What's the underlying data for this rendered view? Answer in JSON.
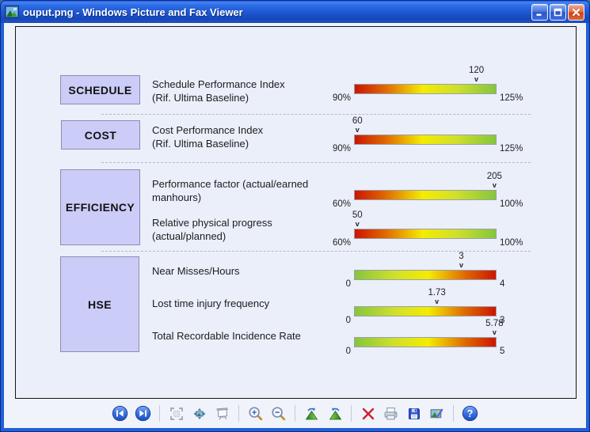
{
  "window": {
    "title": "ouput.png - Windows Picture and Fax Viewer",
    "controls": [
      "minimize",
      "maximize",
      "close"
    ]
  },
  "colors": {
    "titlebar_blue": "#1f5bd7",
    "frame_blue": "#2160d8",
    "client_bg": "#f0f3fa",
    "image_bg": "#ebeffa",
    "category_box_fill": "#ccccf8",
    "category_box_border": "#8d8dae",
    "bar_red": "#cc1500",
    "bar_yellow": "#f5ec00",
    "bar_green": "#85c63c",
    "close_button_red": "#cc4317"
  },
  "kpi_dashboard": {
    "sections": [
      {
        "category": "SCHEDULE",
        "rows": [
          {
            "label_lines": [
              "Schedule Performance Index",
              "(Rif. Ultima Baseline)"
            ],
            "min": 90,
            "max": 125,
            "min_label": "90%",
            "max_label": "125%",
            "value": 120,
            "value_label": "120",
            "scale": "red-green"
          }
        ]
      },
      {
        "category": "COST",
        "rows": [
          {
            "label_lines": [
              "Cost Performance Index",
              "(Rif. Ultima Baseline)"
            ],
            "min": 90,
            "max": 125,
            "min_label": "90%",
            "max_label": "125%",
            "value": 60,
            "value_label": "60",
            "scale": "red-green"
          }
        ]
      },
      {
        "category": "EFFICIENCY",
        "rows": [
          {
            "label_lines": [
              "Performance factor (actual/earned",
              "manhours)"
            ],
            "min": 60,
            "max": 100,
            "min_label": "60%",
            "max_label": "100%",
            "value": 205,
            "value_label": "205",
            "scale": "red-green"
          },
          {
            "label_lines": [
              "Relative physical progress",
              "(actual/planned)"
            ],
            "min": 60,
            "max": 100,
            "min_label": "60%",
            "max_label": "100%",
            "value": 50,
            "value_label": "50",
            "scale": "red-green"
          }
        ]
      },
      {
        "category": "HSE",
        "rows": [
          {
            "label_lines": [
              "Near Misses/Hours"
            ],
            "min": 0,
            "max": 4,
            "min_label": "0",
            "max_label": "4",
            "value": 3,
            "value_label": "3",
            "scale": "green-red"
          },
          {
            "label_lines": [
              "Lost time injury frequency"
            ],
            "min": 0,
            "max": 3,
            "min_label": "0",
            "max_label": "3",
            "value": 1.73,
            "value_label": "1.73",
            "scale": "green-red"
          },
          {
            "label_lines": [
              "Total Recordable Incidence Rate"
            ],
            "min": 0,
            "max": 5,
            "min_label": "0",
            "max_label": "5",
            "value": 5.78,
            "value_label": "5.78",
            "scale": "green-red"
          }
        ]
      }
    ],
    "marker_glyph": "v"
  },
  "toolbar": {
    "icons": [
      "previous-image",
      "next-image",
      "best-fit",
      "actual-size",
      "start-slideshow",
      "zoom-in",
      "zoom-out",
      "rotate-clockwise",
      "rotate-counterclockwise",
      "delete",
      "print",
      "save",
      "edit-picture",
      "help"
    ]
  }
}
